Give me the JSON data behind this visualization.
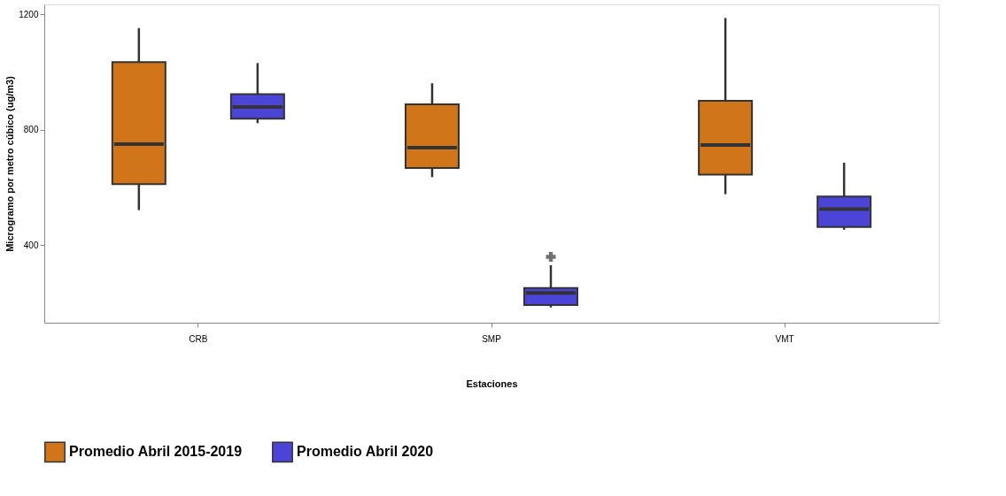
{
  "chart_data": {
    "type": "box",
    "xlabel": "Estaciones",
    "ylabel": "Microgramo por metro cúbico (ug/m3)",
    "categories": [
      "CRB",
      "SMP",
      "VMT"
    ],
    "ylim": [
      132,
      1234
    ],
    "yticks": [
      400,
      800,
      1200
    ],
    "grid": false,
    "legend": "bottom",
    "series": [
      {
        "name": "Promedio Abril 2015-2019",
        "color": "#d07519",
        "boxes": [
          {
            "low": 522,
            "q1": 612,
            "median": 750,
            "q3": 1034,
            "high": 1152
          },
          {
            "low": 636,
            "q1": 668,
            "median": 738,
            "q3": 888,
            "high": 961
          },
          {
            "low": 577,
            "q1": 645,
            "median": 747,
            "q3": 900,
            "high": 1187
          }
        ]
      },
      {
        "name": "Promedio Abril 2020",
        "color": "#4b44d6",
        "boxes": [
          {
            "low": 823,
            "q1": 838,
            "median": 879,
            "q3": 923,
            "high": 1031
          },
          {
            "low": 185,
            "q1": 193,
            "median": 235,
            "q3": 252,
            "high": 331,
            "outliers": [
              360
            ]
          },
          {
            "low": 454,
            "q1": 463,
            "median": 525,
            "q3": 569,
            "high": 686
          }
        ]
      }
    ]
  }
}
